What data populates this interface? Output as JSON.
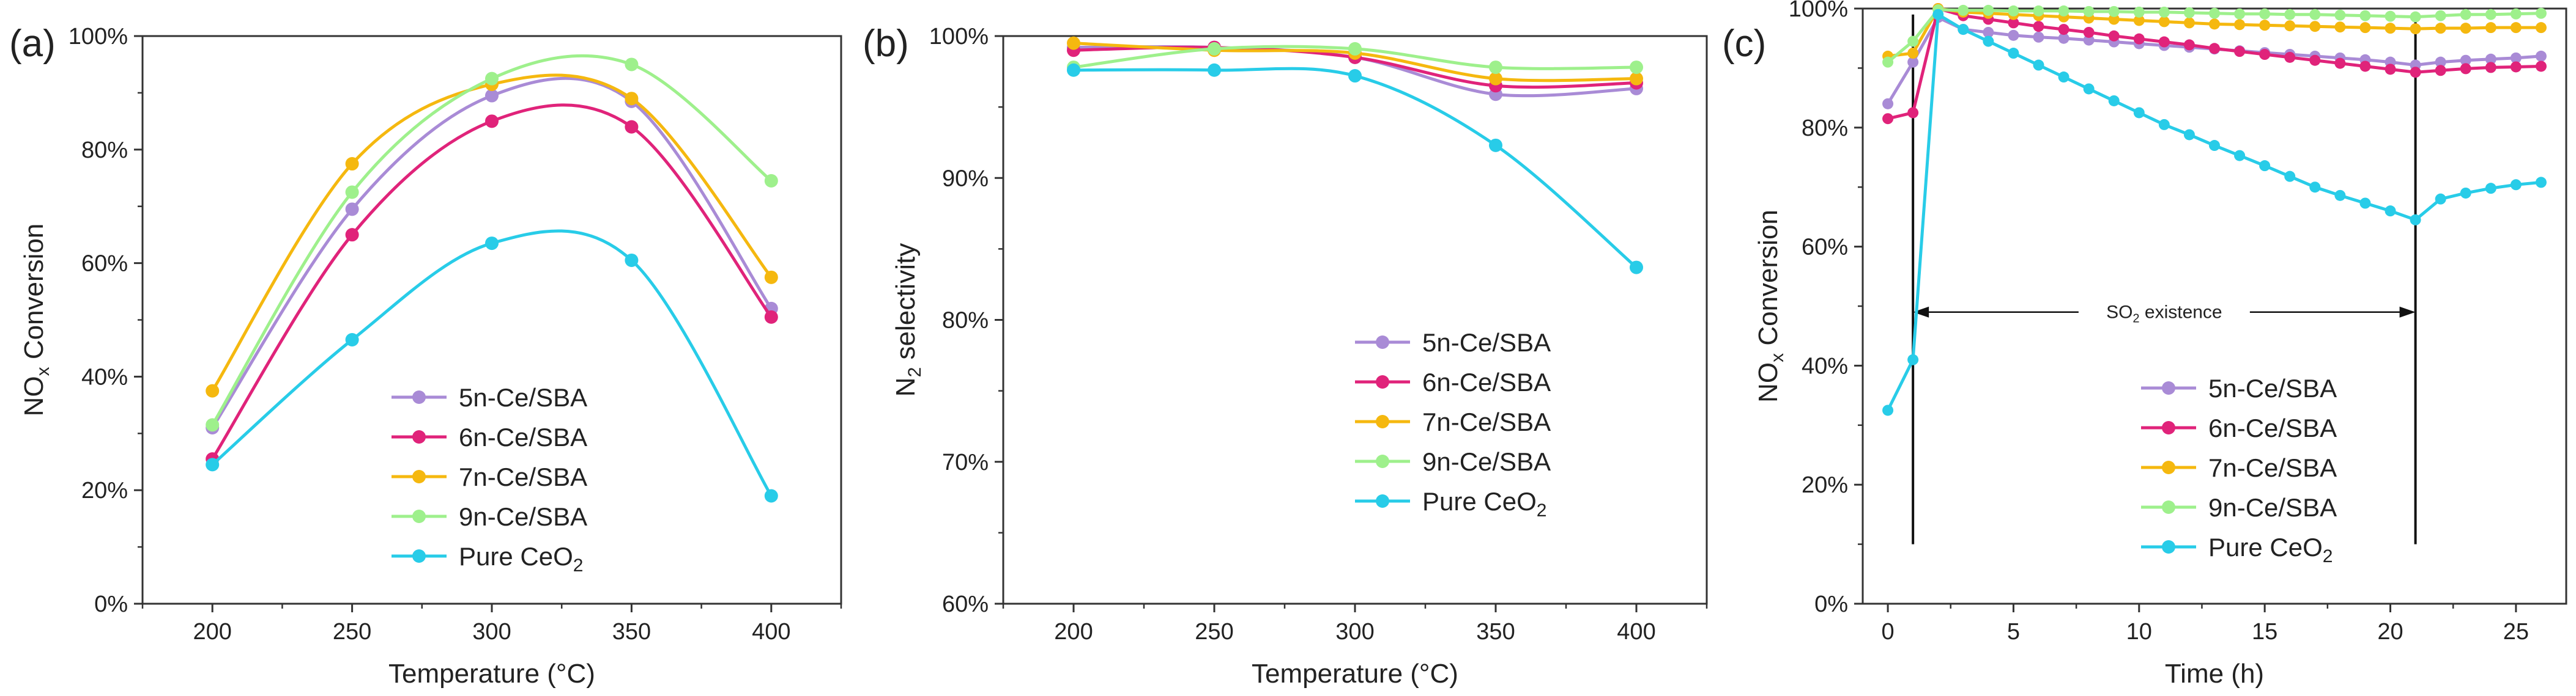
{
  "colors": {
    "5n": "#a98bd6",
    "6n": "#e0237a",
    "7n": "#f5b80f",
    "9n": "#9ef08c",
    "pure": "#28cce8"
  },
  "chart_data": [
    {
      "type": "line",
      "panel_label": "(a)",
      "xlabel": "Temperature (°C)",
      "ylabel_main": "NO",
      "ylabel_sub": "x",
      "ylabel_tail": " Conversion",
      "xlim": [
        175,
        425
      ],
      "ylim": [
        0,
        100
      ],
      "x_ticks": [
        200,
        250,
        300,
        350,
        400
      ],
      "x_tick_labels": [
        "200",
        "250",
        "300",
        "350",
        "400"
      ],
      "y_ticks": [
        0,
        20,
        40,
        60,
        80,
        100
      ],
      "y_tick_labels": [
        "0%",
        "20%",
        "40%",
        "60%",
        "80%",
        "100%"
      ],
      "x": [
        200,
        250,
        300,
        350,
        400
      ],
      "series": [
        {
          "key": "5n",
          "name": "5n-Ce/SBA",
          "values": [
            31,
            69.5,
            89.5,
            88.5,
            52
          ]
        },
        {
          "key": "6n",
          "name": "6n-Ce/SBA",
          "values": [
            25.5,
            65,
            85,
            84,
            50.5
          ]
        },
        {
          "key": "7n",
          "name": "7n-Ce/SBA",
          "values": [
            37.5,
            77.5,
            91.5,
            89,
            57.5
          ]
        },
        {
          "key": "9n",
          "name": "9n-Ce/SBA",
          "values": [
            31.5,
            72.5,
            92.5,
            95,
            74.5
          ]
        },
        {
          "key": "pure",
          "name": "Pure CeO",
          "name_sub": "2",
          "values": [
            24.5,
            46.5,
            63.5,
            60.5,
            19
          ]
        }
      ]
    },
    {
      "type": "line",
      "panel_label": "(b)",
      "xlabel": "Temperature (°C)",
      "ylabel_main": "N",
      "ylabel_sub": "2",
      "ylabel_tail": " selectivity",
      "xlim": [
        175,
        425
      ],
      "ylim": [
        60,
        100
      ],
      "x_ticks": [
        200,
        250,
        300,
        350,
        400
      ],
      "x_tick_labels": [
        "200",
        "250",
        "300",
        "350",
        "400"
      ],
      "y_ticks": [
        60,
        70,
        80,
        90,
        100
      ],
      "y_tick_labels": [
        "60%",
        "70%",
        "80%",
        "90%",
        "100%"
      ],
      "x": [
        200,
        250,
        300,
        350,
        400
      ],
      "series": [
        {
          "key": "5n",
          "name": "5n-Ce/SBA",
          "values": [
            99.2,
            99.2,
            98.5,
            95.9,
            96.3
          ]
        },
        {
          "key": "6n",
          "name": "6n-Ce/SBA",
          "values": [
            99.0,
            99.2,
            98.5,
            96.5,
            96.7
          ]
        },
        {
          "key": "7n",
          "name": "7n-Ce/SBA",
          "values": [
            99.5,
            99.0,
            98.8,
            97.0,
            97.0
          ]
        },
        {
          "key": "9n",
          "name": "9n-Ce/SBA",
          "values": [
            97.8,
            99.1,
            99.1,
            97.8,
            97.8
          ]
        },
        {
          "key": "pure",
          "name": "Pure CeO",
          "name_sub": "2",
          "values": [
            97.6,
            97.6,
            97.2,
            92.3,
            83.7
          ]
        }
      ]
    },
    {
      "type": "line",
      "panel_label": "(c)",
      "xlabel": "Time (h)",
      "ylabel_main": "NO",
      "ylabel_sub": "x",
      "ylabel_tail": " Conversion",
      "xlim": [
        -1,
        27
      ],
      "ylim": [
        0,
        100
      ],
      "x_ticks": [
        0,
        5,
        10,
        15,
        20,
        25
      ],
      "x_tick_labels": [
        "0",
        "5",
        "10",
        "15",
        "20",
        "25"
      ],
      "y_ticks": [
        0,
        20,
        40,
        60,
        80,
        100
      ],
      "y_tick_labels": [
        "0%",
        "20%",
        "40%",
        "60%",
        "80%",
        "100%"
      ],
      "x": [
        0,
        1,
        2,
        3,
        4,
        5,
        6,
        7,
        8,
        9,
        10,
        11,
        12,
        13,
        14,
        15,
        16,
        17,
        18,
        19,
        20,
        21,
        22,
        23,
        24,
        25,
        26
      ],
      "annotation": {
        "text_main": "SO",
        "text_sub": "2",
        "text_tail": " existence",
        "from_x": 1,
        "to_x": 21,
        "arrow_y": 49,
        "vline_y_range": [
          10,
          99
        ]
      },
      "series": [
        {
          "key": "5n",
          "name": "5n-Ce/SBA",
          "values": [
            84,
            91,
            98.5,
            96.5,
            96,
            95.5,
            95.2,
            95,
            94.7,
            94.4,
            94.1,
            93.8,
            93.5,
            93.2,
            92.9,
            92.6,
            92.3,
            92,
            91.7,
            91.4,
            91,
            90.5,
            91,
            91.3,
            91.5,
            91.7,
            92
          ]
        },
        {
          "key": "6n",
          "name": "6n-Ce/SBA",
          "values": [
            81.5,
            82.5,
            100,
            98.8,
            98.2,
            97.6,
            97,
            96.5,
            96,
            95.4,
            94.9,
            94.4,
            93.9,
            93.3,
            92.8,
            92.3,
            91.8,
            91.3,
            90.8,
            90.3,
            89.8,
            89.3,
            89.6,
            89.9,
            90.1,
            90.2,
            90.3
          ]
        },
        {
          "key": "7n",
          "name": "7n-Ce/SBA",
          "values": [
            92,
            92.5,
            100,
            99.4,
            99.2,
            99,
            98.8,
            98.6,
            98.4,
            98.2,
            98,
            97.8,
            97.6,
            97.4,
            97.3,
            97.2,
            97.1,
            97,
            96.9,
            96.8,
            96.7,
            96.6,
            96.7,
            96.7,
            96.8,
            96.8,
            96.8
          ]
        },
        {
          "key": "9n",
          "name": "9n-Ce/SBA",
          "values": [
            91,
            94.5,
            99.8,
            99.7,
            99.7,
            99.6,
            99.6,
            99.6,
            99.5,
            99.5,
            99.4,
            99.4,
            99.3,
            99.2,
            99.1,
            99.1,
            99,
            99,
            98.9,
            98.8,
            98.7,
            98.6,
            98.8,
            99,
            99,
            99.1,
            99.2
          ]
        },
        {
          "key": "pure",
          "name": "Pure CeO",
          "name_sub": "2",
          "values": [
            32.5,
            41,
            99,
            96.5,
            94.5,
            92.5,
            90.5,
            88.5,
            86.5,
            84.5,
            82.5,
            80.5,
            78.8,
            77,
            75.3,
            73.6,
            71.8,
            70,
            68.6,
            67.3,
            66,
            64.5,
            68,
            69,
            69.8,
            70.4,
            70.8
          ]
        }
      ]
    }
  ]
}
